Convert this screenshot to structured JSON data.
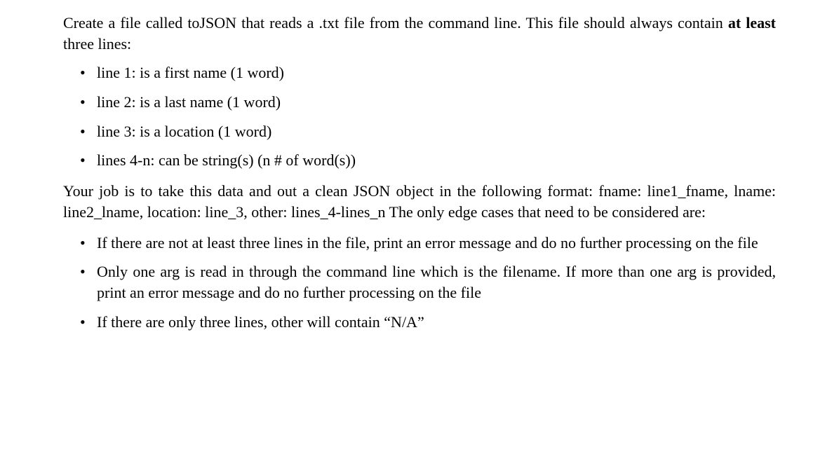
{
  "intro_pre": "Create a file called toJSON that reads a .txt file from the command line.  This file should always contain ",
  "intro_bold": "at least",
  "intro_post": " three lines:",
  "spec_items": [
    "line 1: is a first name (1 word)",
    "line 2: is a last name (1 word)",
    "line 3: is a location (1 word)",
    "lines 4-n: can be string(s) (n # of word(s))"
  ],
  "format_para": "Your job is to take this data and out a clean JSON object in the following format: fname: line1_fname, lname: line2_lname, location: line_3, other: lines_4-lines_n The only edge cases that need to be considered are:",
  "edge_items": [
    "If there are not at least three lines in the file, print an error message and do no further processing on the file",
    "Only one arg is read in through the command line which is the filename. If more than one arg is provided, print an error message and do no further processing on the file",
    "If there are only three lines, other will contain “N/A”"
  ]
}
